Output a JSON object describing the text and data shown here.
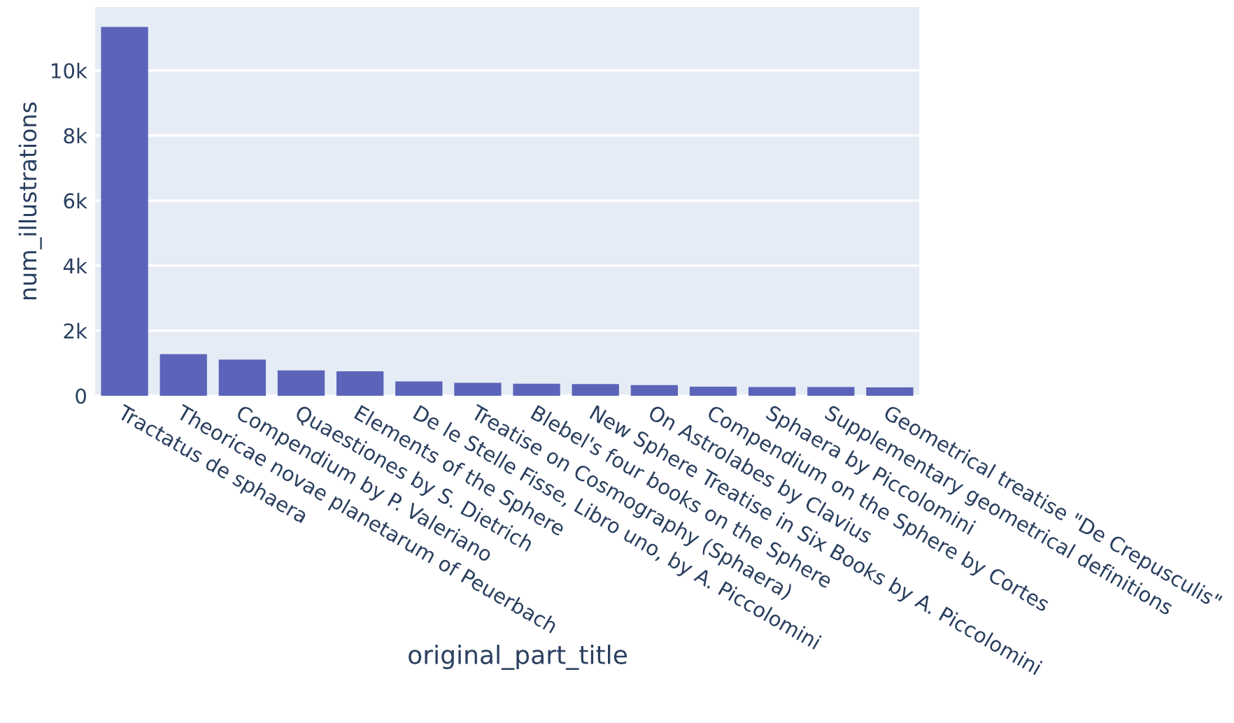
{
  "chart_data": {
    "type": "bar",
    "xlabel": "original_part_title",
    "ylabel": "num_illustrations",
    "categories": [
      "Tractatus de sphaera",
      "Theoricae novae planetarum of Peuerbach",
      "Compendium by P. Valeriano",
      "Quaestiones by S. Dietrich",
      "Elements of the Sphere",
      "De le Stelle Fisse, Libro uno, by A. Piccolomini",
      "Treatise on Cosmography (Sphaera)",
      "Blebel's four books on the Sphere",
      "New Sphere Treatise in Six Books by A. Piccolomini",
      "On Astrolabes by Clavius",
      "Compendium on the Sphere by Cortes",
      "Sphaera by Piccolomini",
      "Supplementary geometrical definitions",
      "Geometrical treatise \"De Crepusculis\""
    ],
    "values": [
      11340,
      1280,
      1110,
      780,
      750,
      440,
      400,
      370,
      360,
      330,
      280,
      270,
      270,
      260
    ],
    "color": "#5b64b8",
    "ylim": [
      0,
      11950
    ],
    "yticks": [
      0,
      {
        "value": 2000,
        "label": "2k"
      },
      {
        "value": 4000,
        "label": "4k"
      },
      {
        "value": 6000,
        "label": "6k"
      },
      {
        "value": 8000,
        "label": "8k"
      },
      {
        "value": 10000,
        "label": "10k"
      }
    ],
    "grid": "y"
  }
}
